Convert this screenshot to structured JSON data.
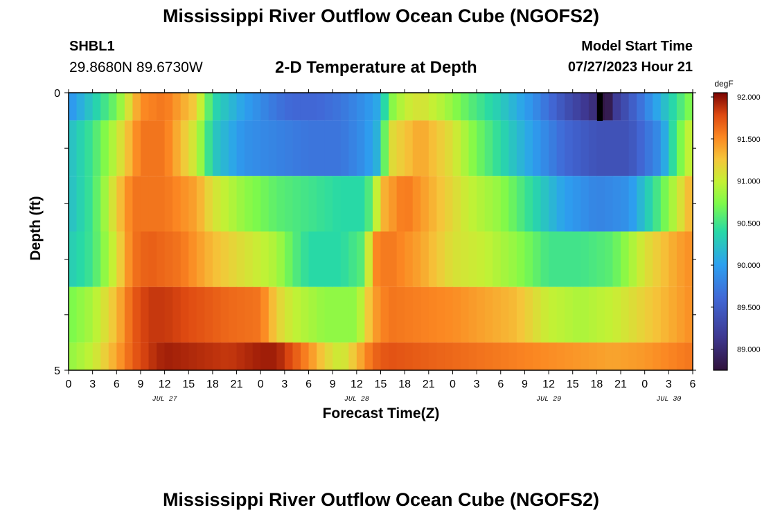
{
  "header": {
    "title": "Mississippi River Outflow Ocean Cube (NGOFS2)",
    "station": "SHBL1",
    "coords": "29.8680N  89.6730W",
    "plot_title": "2-D Temperature at Depth",
    "model_start_label": "Model Start Time",
    "model_start_value": "07/27/2023 Hour 21"
  },
  "footer": {
    "title": "Mississippi River Outflow Ocean Cube (NGOFS2)"
  },
  "chart_data": {
    "type": "heatmap",
    "title": "2-D Temperature at Depth",
    "xlabel": "Forecast Time(Z)",
    "ylabel": "Depth (ft)",
    "x_tick_labels": [
      "0",
      "3",
      "6",
      "9",
      "12",
      "15",
      "18",
      "21",
      "0",
      "3",
      "6",
      "9",
      "12",
      "15",
      "18",
      "21",
      "0",
      "3",
      "6",
      "9",
      "12",
      "15",
      "18",
      "21",
      "0",
      "3",
      "6"
    ],
    "date_labels": [
      {
        "label": "JUL 27",
        "hour": 12
      },
      {
        "label": "JUL 28",
        "hour": 36
      },
      {
        "label": "JUL 29",
        "hour": 60
      },
      {
        "label": "JUL 30",
        "hour": 75
      }
    ],
    "y_tick_labels": [
      "0",
      "5"
    ],
    "ylim": [
      0,
      5
    ],
    "xlim_hours": [
      0,
      78
    ],
    "colorbar": {
      "unit": "degF",
      "min": 88.75,
      "max": 92.05,
      "tick_labels": [
        "92.000",
        "91.500",
        "91.000",
        "90.500",
        "90.000",
        "89.500",
        "89.000"
      ],
      "tick_values": [
        92.0,
        91.5,
        91.0,
        90.5,
        90.0,
        89.5,
        89.0
      ]
    },
    "layers": [
      {
        "depth_range": [
          0.0,
          0.5
        ],
        "hours": [
          0,
          6,
          9,
          12,
          16,
          18,
          22,
          26,
          28,
          31,
          34,
          37,
          39,
          40,
          42,
          44,
          47,
          50,
          54,
          58,
          62,
          66,
          67,
          68,
          71,
          75,
          78
        ],
        "values": [
          89.9,
          90.7,
          91.5,
          91.6,
          91.2,
          90.4,
          90.0,
          89.7,
          89.6,
          89.6,
          89.7,
          89.9,
          90.1,
          90.7,
          91.0,
          91.1,
          90.9,
          90.6,
          90.3,
          89.9,
          89.4,
          89.0,
          88.6,
          89.1,
          89.6,
          90.3,
          90.8
        ]
      },
      {
        "depth_range": [
          0.5,
          1.5
        ],
        "hours": [
          0,
          3,
          6,
          9,
          12,
          16,
          18,
          22,
          26,
          30,
          34,
          37,
          39,
          40,
          44,
          48,
          51,
          54,
          58,
          62,
          66,
          70,
          74,
          76,
          78
        ],
        "values": [
          90.2,
          90.5,
          91.0,
          91.6,
          91.6,
          91.0,
          90.3,
          89.9,
          89.8,
          89.7,
          89.7,
          89.9,
          90.2,
          91.1,
          91.4,
          91.1,
          90.7,
          90.4,
          90.0,
          89.6,
          89.4,
          89.4,
          89.9,
          90.6,
          91.1
        ]
      },
      {
        "depth_range": [
          1.5,
          2.5
        ],
        "hours": [
          0,
          3,
          6,
          8,
          12,
          16,
          18,
          22,
          26,
          30,
          34,
          37,
          38,
          39,
          42,
          46,
          50,
          54,
          58,
          62,
          66,
          70,
          74,
          78
        ],
        "values": [
          90.2,
          90.5,
          91.2,
          91.6,
          91.6,
          91.4,
          91.1,
          90.8,
          90.6,
          90.5,
          90.4,
          90.4,
          90.7,
          91.3,
          91.6,
          91.3,
          91.0,
          90.8,
          90.4,
          90.0,
          89.8,
          89.9,
          90.6,
          91.4
        ]
      },
      {
        "depth_range": [
          2.5,
          3.5
        ],
        "hours": [
          0,
          3,
          6,
          8,
          10,
          14,
          18,
          22,
          26,
          28,
          30,
          34,
          37,
          38,
          40,
          44,
          48,
          52,
          56,
          60,
          64,
          68,
          72,
          76,
          78
        ],
        "values": [
          90.3,
          90.5,
          91.1,
          91.6,
          91.7,
          91.6,
          91.3,
          91.1,
          90.9,
          90.6,
          90.4,
          90.4,
          90.6,
          91.5,
          91.6,
          91.4,
          91.1,
          91.0,
          90.8,
          90.5,
          90.5,
          90.6,
          91.1,
          91.4,
          91.5
        ]
      },
      {
        "depth_range": [
          3.5,
          4.5
        ],
        "hours": [
          0,
          3,
          6,
          8,
          10,
          12,
          16,
          20,
          24,
          26,
          28,
          32,
          36,
          38,
          40,
          44,
          48,
          52,
          56,
          60,
          64,
          68,
          72,
          76,
          78
        ],
        "values": [
          90.7,
          90.9,
          91.3,
          91.7,
          91.85,
          91.85,
          91.75,
          91.65,
          91.6,
          91.2,
          91.0,
          90.8,
          90.8,
          91.4,
          91.6,
          91.55,
          91.5,
          91.4,
          91.3,
          91.0,
          90.9,
          91.0,
          91.2,
          91.4,
          91.5
        ]
      },
      {
        "depth_range": [
          4.5,
          5.0
        ],
        "hours": [
          0,
          3,
          6,
          8,
          10,
          12,
          16,
          20,
          24,
          26,
          28,
          30,
          32,
          34,
          36,
          38,
          40,
          44,
          48,
          52,
          56,
          60,
          64,
          68,
          72,
          76,
          78
        ],
        "values": [
          90.8,
          91.0,
          91.4,
          91.7,
          91.85,
          91.95,
          91.9,
          91.85,
          91.95,
          91.95,
          91.75,
          91.5,
          91.2,
          91.0,
          91.3,
          91.65,
          91.75,
          91.7,
          91.65,
          91.6,
          91.55,
          91.5,
          91.45,
          91.4,
          91.45,
          91.55,
          91.6
        ]
      }
    ]
  }
}
